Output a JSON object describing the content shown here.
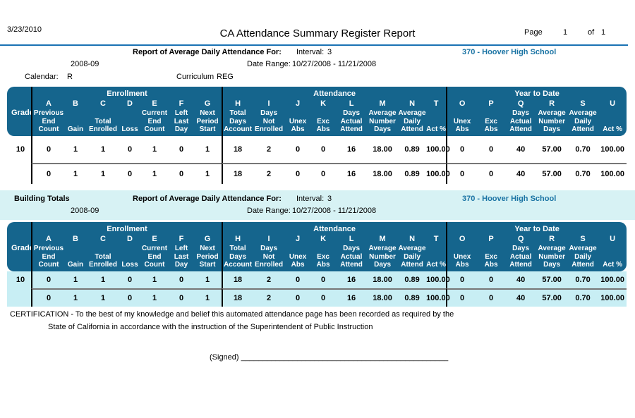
{
  "header": {
    "date": "3/23/2010",
    "title": "CA Attendance Summary Register Report",
    "page_label": "Page",
    "page_number": "1",
    "of_label": "of",
    "total_pages": "1"
  },
  "colors": {
    "table_header_teal": "#15658D",
    "section_band_cyan": "#D7F2F4",
    "table2_row_cyan": "#C8EEF4",
    "school_name_blue": "#1B74A4",
    "divider_blue": "#1A72B4"
  },
  "section1": {
    "report_for_label": "Report of Average Daily Attendance For:",
    "interval_label": "Interval:",
    "interval_value": "3",
    "school_name": "370 - Hoover High School",
    "school_year": "2008-09",
    "date_range_label": "Date Range:",
    "date_range_value": "10/27/2008 - 11/21/2008",
    "calendar_label": "Calendar:",
    "calendar_value": "R",
    "curriculum_label": "Curriculum",
    "curriculum_value": "REG"
  },
  "section2": {
    "title": "Building Totals",
    "report_for_label": "Report of Average Daily Attendance For:",
    "interval_label": "Interval:",
    "interval_value": "3",
    "school_name": "370 - Hoover High School",
    "school_year": "2008-09",
    "date_range_label": "Date Range:",
    "date_range_value": "10/27/2008 - 11/21/2008"
  },
  "table": {
    "grade_header": "Grade",
    "groups": [
      {
        "title": "Enrollment",
        "columns": [
          {
            "letter": "A",
            "label": "Previous\nEnd\nCount"
          },
          {
            "letter": "B",
            "label": "Gain"
          },
          {
            "letter": "C",
            "label": "Total\nEnrolled"
          },
          {
            "letter": "D",
            "label": "Loss"
          },
          {
            "letter": "E",
            "label": "Current\nEnd\nCount"
          },
          {
            "letter": "F",
            "label": "Left\nLast\nDay"
          },
          {
            "letter": "G",
            "label": "Next\nPeriod\nStart"
          }
        ]
      },
      {
        "title": "Attendance",
        "columns": [
          {
            "letter": "H",
            "label": "Total\nDays\nAccount"
          },
          {
            "letter": "I",
            "label": "Days\nNot\nEnrolled"
          },
          {
            "letter": "J",
            "label": "Unex\nAbs"
          },
          {
            "letter": "K",
            "label": "Exc\nAbs"
          },
          {
            "letter": "L",
            "label": "Days\nActual\nAttend"
          },
          {
            "letter": "M",
            "label": "Average\nNumber\nDays"
          },
          {
            "letter": "N",
            "label": "Average\nDaily\nAttend"
          },
          {
            "letter": "T",
            "label": "Act %"
          }
        ]
      },
      {
        "title": "Year to Date",
        "columns": [
          {
            "letter": "O",
            "label": "Unex\nAbs"
          },
          {
            "letter": "P",
            "label": "Exc\nAbs"
          },
          {
            "letter": "Q",
            "label": "Days\nActual\nAttend"
          },
          {
            "letter": "R",
            "label": "Average\nNumber\nDays"
          },
          {
            "letter": "S",
            "label": "Average\nDaily\nAttend"
          },
          {
            "letter": "U",
            "label": "Act %"
          }
        ]
      }
    ],
    "instances": [
      {
        "name": "grade-detail",
        "rows": [
          {
            "grade": "10",
            "values": [
              "0",
              "1",
              "1",
              "0",
              "1",
              "0",
              "1",
              "18",
              "2",
              "0",
              "0",
              "16",
              "18.00",
              "0.89",
              "100.00",
              "0",
              "0",
              "40",
              "57.00",
              "0.70",
              "100.00"
            ]
          },
          {
            "grade": "",
            "values": [
              "0",
              "1",
              "1",
              "0",
              "1",
              "0",
              "1",
              "18",
              "2",
              "0",
              "0",
              "16",
              "18.00",
              "0.89",
              "100.00",
              "0",
              "0",
              "40",
              "57.00",
              "0.70",
              "100.00"
            ]
          }
        ]
      },
      {
        "name": "building-totals",
        "rows": [
          {
            "grade": "10",
            "values": [
              "0",
              "1",
              "1",
              "0",
              "1",
              "0",
              "1",
              "18",
              "2",
              "0",
              "0",
              "16",
              "18.00",
              "0.89",
              "100.00",
              "0",
              "0",
              "40",
              "57.00",
              "0.70",
              "100.00"
            ]
          },
          {
            "grade": "",
            "values": [
              "0",
              "1",
              "1",
              "0",
              "1",
              "0",
              "1",
              "18",
              "2",
              "0",
              "0",
              "16",
              "18.00",
              "0.89",
              "100.00",
              "0",
              "0",
              "40",
              "57.00",
              "0.70",
              "100.00"
            ]
          }
        ]
      }
    ]
  },
  "certification": {
    "line1": "CERTIFICATION - To the best of my knowledge and belief this automated attendance page has been recorded as required by the",
    "line2": "State of California in accordance with the instruction of the Superintendent of Public Instruction",
    "signed_label": "(Signed)",
    "signature_line": "________________________________________________"
  }
}
